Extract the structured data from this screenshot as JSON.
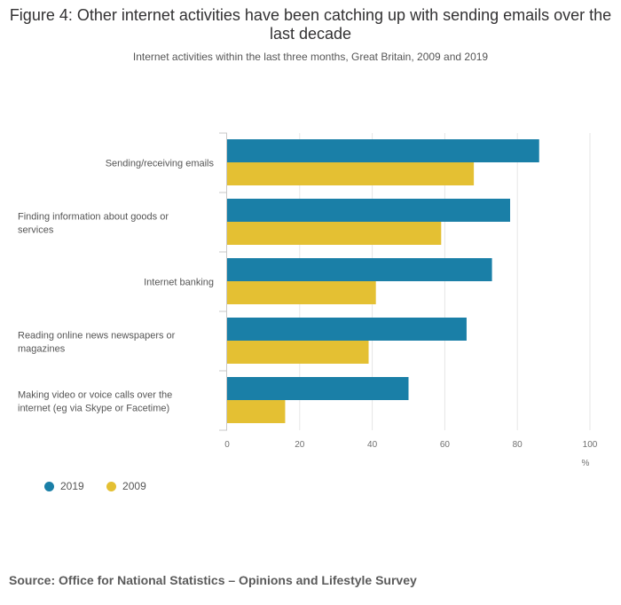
{
  "title": "Figure 4: Other internet activities have been catching up with sending emails over the last decade",
  "subtitle": "Internet activities within the last three months, Great Britain, 2009 and 2019",
  "source": "Source: Office for National Statistics – Opinions and Lifestyle Survey",
  "colors": {
    "series_2019": "#1a7fa7",
    "series_2009": "#e4c033"
  },
  "chart_data": {
    "type": "bar",
    "orientation": "horizontal",
    "categories": [
      [
        "Sending/receiving emails"
      ],
      [
        "Finding information about goods or",
        "services"
      ],
      [
        "Internet banking"
      ],
      [
        "Reading online news newspapers or",
        "magazines"
      ],
      [
        "Making video or voice calls over the",
        "internet (eg via Skype or Facetime)"
      ]
    ],
    "series": [
      {
        "name": "2019",
        "color": "#1a7fa7",
        "values": [
          86,
          78,
          73,
          66,
          50
        ]
      },
      {
        "name": "2009",
        "color": "#e4c033",
        "values": [
          68,
          59,
          41,
          39,
          16
        ]
      }
    ],
    "xlim": [
      0,
      100
    ],
    "xticks": [
      0,
      20,
      40,
      60,
      80,
      100
    ],
    "xlabel": "%",
    "grid": true,
    "legend_position": "bottom-left"
  }
}
